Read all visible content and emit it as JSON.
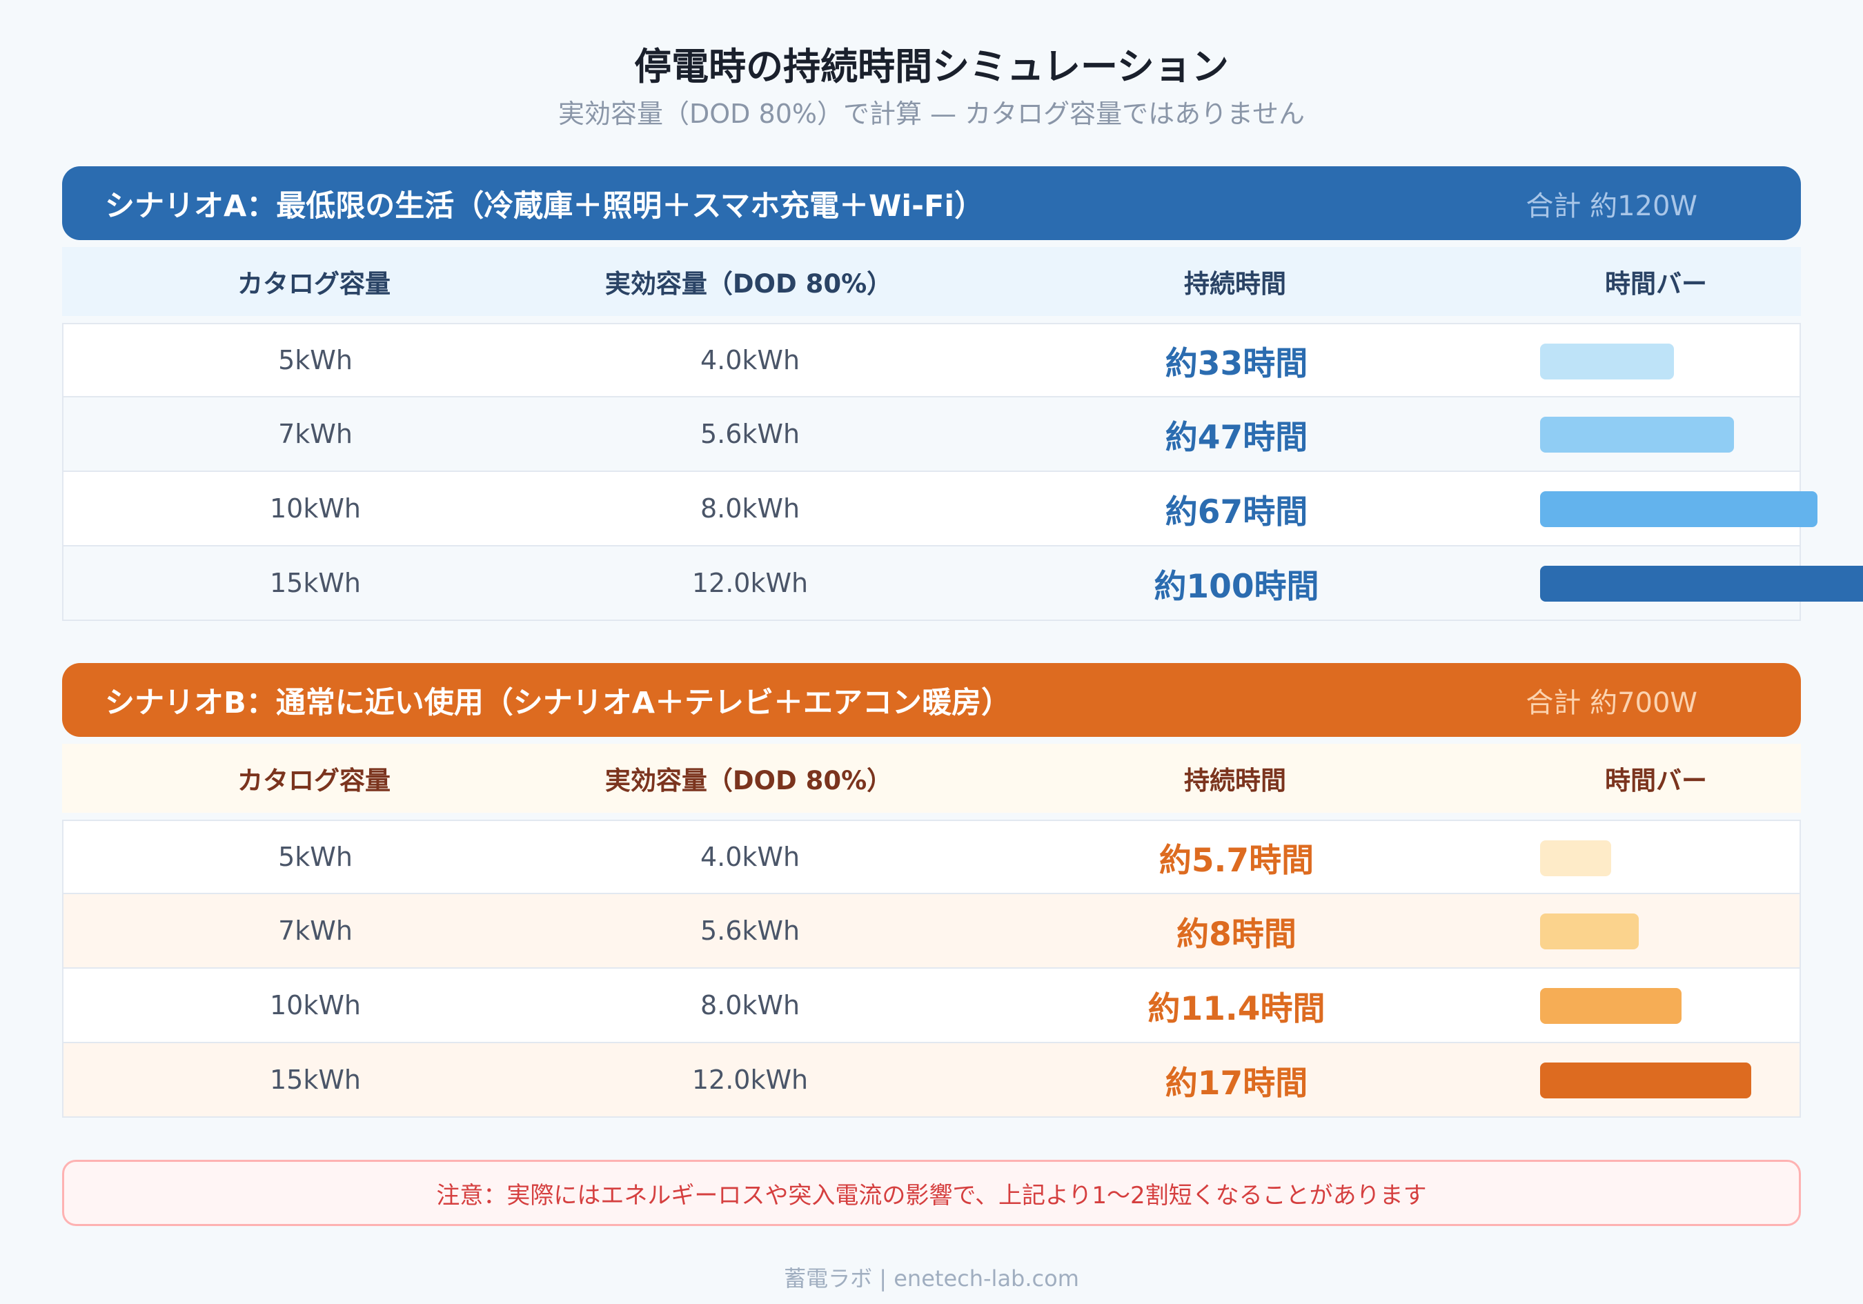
{
  "title": "停電時の持続時間シミュレーション",
  "subtitle": "実効容量（DOD 80%）で計算 — カタログ容量ではありません",
  "columns": [
    "カタログ容量",
    "実効容量（DOD 80%）",
    "持続時間",
    "時間バー"
  ],
  "scenarios": [
    {
      "title": "シナリオA：最低限の生活（冷蔵庫＋照明＋スマホ充電＋Wi-Fi）",
      "total": "合計 約120W",
      "accent": "#2b6cb0",
      "rows": [
        {
          "catalog": "5kWh",
          "effective": "4.0kWh",
          "duration": "約33時間",
          "bar_fraction": 0.36,
          "bar_color": "#bee3f8"
        },
        {
          "catalog": "7kWh",
          "effective": "5.6kWh",
          "duration": "約47時間",
          "bar_fraction": 0.52,
          "bar_color": "#90cdf4"
        },
        {
          "catalog": "10kWh",
          "effective": "8.0kWh",
          "duration": "約67時間",
          "bar_fraction": 0.745,
          "bar_color": "#63b3ed"
        },
        {
          "catalog": "15kWh",
          "effective": "12.0kWh",
          "duration": "約100時間",
          "bar_fraction": 1.0,
          "bar_color": "#2b6cb0"
        }
      ]
    },
    {
      "title": "シナリオB：通常に近い使用（シナリオA＋テレビ＋エアコン暖房）",
      "total": "合計 約700W",
      "accent": "#dd6b20",
      "rows": [
        {
          "catalog": "5kWh",
          "effective": "4.0kWh",
          "duration": "約5.7時間",
          "bar_fraction": 0.19,
          "bar_color": "#feebc8"
        },
        {
          "catalog": "7kWh",
          "effective": "5.6kWh",
          "duration": "約8時間",
          "bar_fraction": 0.265,
          "bar_color": "#fbd38d"
        },
        {
          "catalog": "10kWh",
          "effective": "8.0kWh",
          "duration": "約11.4時間",
          "bar_fraction": 0.38,
          "bar_color": "#f6ad55"
        },
        {
          "catalog": "15kWh",
          "effective": "12.0kWh",
          "duration": "約17時間",
          "bar_fraction": 0.567,
          "bar_color": "#dd6b20"
        }
      ]
    }
  ],
  "note": "注意：実際にはエネルギーロスや突入電流の影響で、上記より1〜2割短くなることがあります",
  "footer": "蓄電ラボ | enetech-lab.com"
}
